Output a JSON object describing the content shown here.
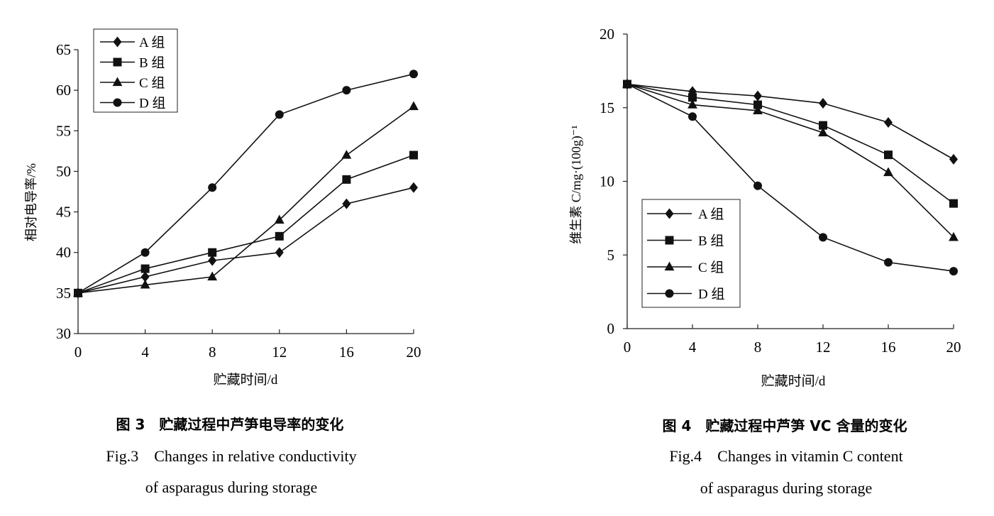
{
  "chart_data": [
    {
      "type": "line",
      "title": "",
      "xlabel": "贮藏时间/d",
      "ylabel": "相对电导率/%",
      "x": [
        0,
        4,
        8,
        12,
        16,
        20
      ],
      "xticks": [
        "0",
        "4",
        "8",
        "12",
        "16",
        "20"
      ],
      "yticks": [
        "30",
        "35",
        "40",
        "45",
        "50",
        "55",
        "60",
        "65"
      ],
      "xlim": [
        0,
        20
      ],
      "ylim": [
        30,
        65
      ],
      "legend_position": "top-left",
      "series": [
        {
          "name": "A 组",
          "marker": "diamond",
          "values": [
            35,
            37,
            39,
            40,
            46,
            48
          ]
        },
        {
          "name": "B 组",
          "marker": "square",
          "values": [
            35,
            38,
            40,
            42,
            49,
            52
          ]
        },
        {
          "name": "C 组",
          "marker": "triangle",
          "values": [
            35,
            36,
            37,
            44,
            52,
            58
          ]
        },
        {
          "name": "D 组",
          "marker": "circle",
          "values": [
            35,
            40,
            48,
            57,
            60,
            62
          ]
        }
      ],
      "caption_title": "图 3　贮藏过程中芦笋电导率的变化",
      "caption_line1": "Fig.3　Changes in relative conductivity",
      "caption_line2": "of asparagus during storage"
    },
    {
      "type": "line",
      "title": "",
      "xlabel": "贮藏时间/d",
      "ylabel": "维生素 C/mg·(100g)⁻¹",
      "x": [
        0,
        4,
        8,
        12,
        16,
        20
      ],
      "xticks": [
        "0",
        "4",
        "8",
        "12",
        "16",
        "20"
      ],
      "yticks": [
        "0",
        "5",
        "10",
        "15",
        "20"
      ],
      "xlim": [
        0,
        20
      ],
      "ylim": [
        0,
        20
      ],
      "legend_position": "bottom-left",
      "series": [
        {
          "name": "A 组",
          "marker": "diamond",
          "values": [
            16.6,
            16.1,
            15.8,
            15.3,
            14.0,
            11.5
          ]
        },
        {
          "name": "B 组",
          "marker": "square",
          "values": [
            16.6,
            15.7,
            15.2,
            13.8,
            11.8,
            8.5
          ]
        },
        {
          "name": "C 组",
          "marker": "triangle",
          "values": [
            16.6,
            15.2,
            14.8,
            13.3,
            10.6,
            6.2
          ]
        },
        {
          "name": "D 组",
          "marker": "circle",
          "values": [
            16.6,
            14.4,
            9.7,
            6.2,
            4.5,
            3.9
          ]
        }
      ],
      "caption_title": "图 4　贮藏过程中芦笋 VC 含量的变化",
      "caption_line1": "Fig.4　Changes in vitamin C content",
      "caption_line2": "of asparagus during storage"
    }
  ]
}
